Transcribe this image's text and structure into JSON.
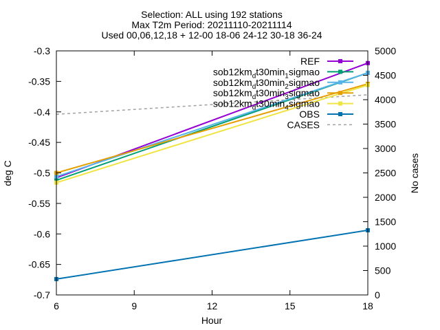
{
  "chart_data": {
    "type": "line",
    "title_lines": [
      "Selection: ALL using   192 stations",
      "Max T2m   Period: 20211110-20211114",
      "Used 00,06,12,18 + 12-00 18-06 24-12 30-18 36-24"
    ],
    "xlabel": "Hour",
    "ylabel": "deg C",
    "y2label": "No cases",
    "xlim": [
      6,
      18
    ],
    "ylim": [
      -0.7,
      -0.3
    ],
    "y2lim": [
      0,
      5000
    ],
    "xticks": [
      6,
      9,
      12,
      15,
      18
    ],
    "yticks": [
      -0.7,
      -0.65,
      -0.6,
      -0.55,
      -0.5,
      -0.45,
      -0.4,
      -0.35,
      -0.3
    ],
    "y2ticks": [
      0,
      500,
      1000,
      1500,
      2000,
      2500,
      3000,
      3500,
      4000,
      4500,
      5000
    ],
    "legend_position": "top-right",
    "grid": false,
    "series": [
      {
        "name": "REF",
        "color": "#9400d3",
        "axis": "y",
        "marker": "square",
        "x": [
          6,
          18
        ],
        "y": [
          -0.508,
          -0.32
        ]
      },
      {
        "name_parts": [
          "sob12km",
          "d",
          "t30min",
          "1",
          "sigmao"
        ],
        "color": "#009e73",
        "axis": "y",
        "marker": "square",
        "x": [
          6,
          18
        ],
        "y": [
          -0.512,
          -0.336
        ]
      },
      {
        "name_parts": [
          "sob12km",
          "d",
          "t30min",
          "2",
          "sigmao"
        ],
        "color": "#56b4e9",
        "axis": "y",
        "marker": "square",
        "x": [
          6,
          18
        ],
        "y": [
          -0.506,
          -0.336
        ]
      },
      {
        "name_parts": [
          "sob12km",
          "d",
          "t30min",
          "3",
          "sigmao"
        ],
        "color": "#e69f00",
        "axis": "y",
        "marker": "square",
        "x": [
          6,
          18
        ],
        "y": [
          -0.5,
          -0.354
        ]
      },
      {
        "name_parts": [
          "sob12km",
          "d",
          "t30min",
          "4",
          "sigmao"
        ],
        "color": "#f0e442",
        "axis": "y",
        "marker": "square",
        "x": [
          6,
          18
        ],
        "y": [
          -0.516,
          -0.356
        ]
      },
      {
        "name": "OBS",
        "color": "#0072b2",
        "axis": "y",
        "marker": "square",
        "x": [
          6,
          18
        ],
        "y": [
          -0.674,
          -0.594
        ]
      },
      {
        "name": "CASES",
        "color": "#a0a0a0",
        "axis": "y2",
        "marker": "none",
        "dash": true,
        "x": [
          6,
          18
        ],
        "y": [
          3700,
          4100
        ]
      }
    ]
  }
}
